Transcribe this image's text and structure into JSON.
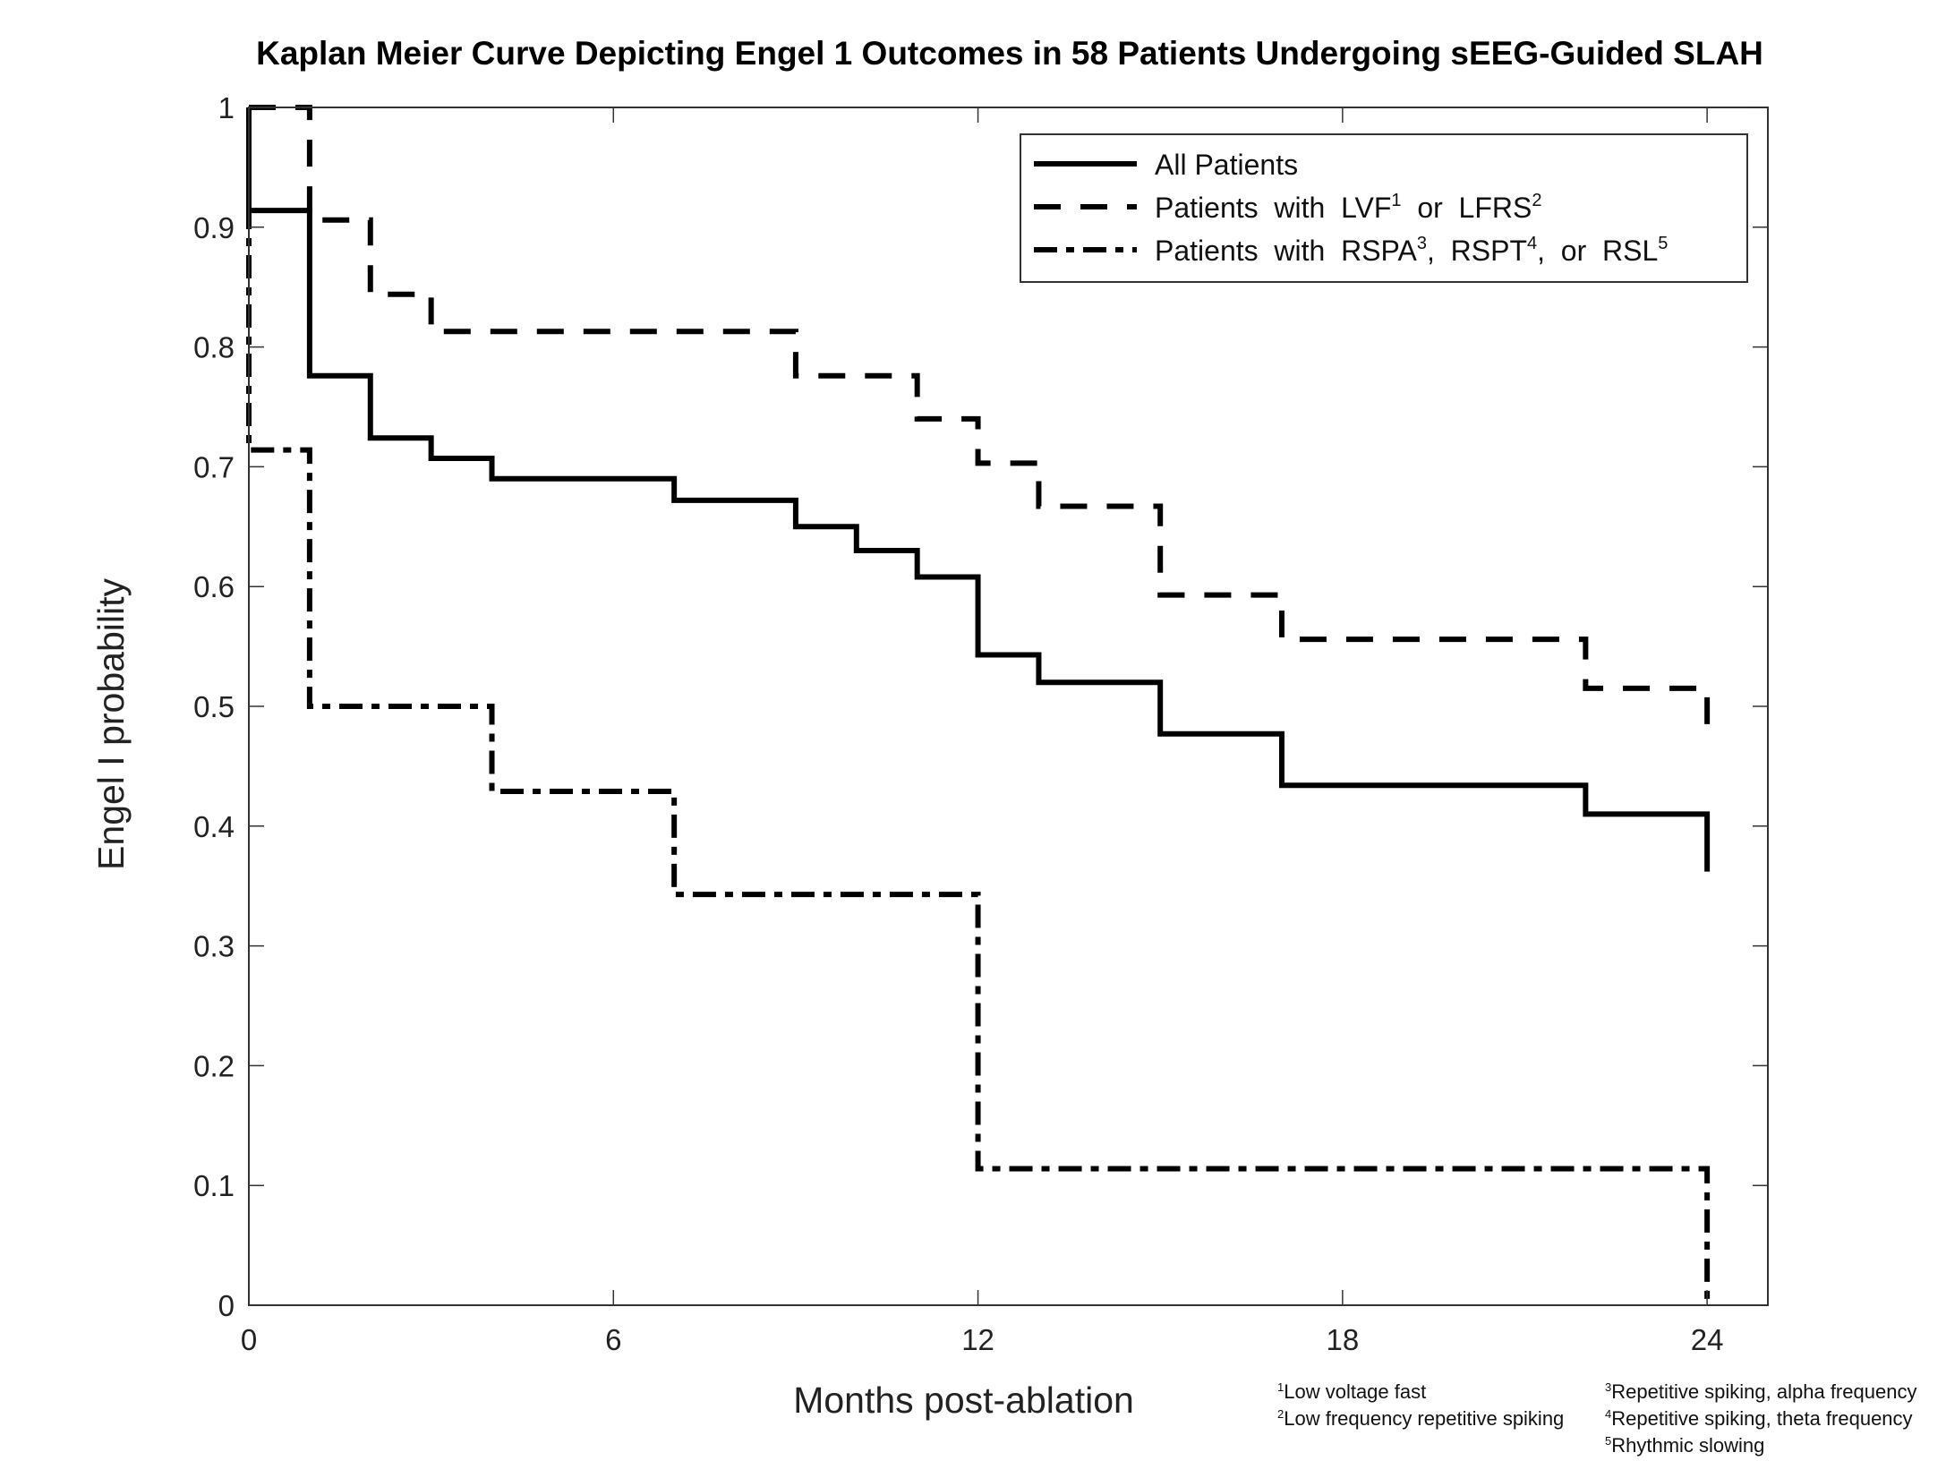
{
  "chart_data": {
    "type": "line",
    "subtype": "step",
    "title": "Kaplan Meier Curve Depicting Engel 1 Outcomes in 58 Patients Undergoing sEEG-Guided SLAH",
    "xlabel": "Months post-ablation",
    "ylabel": "Engel I probability",
    "xlim": [
      0,
      25
    ],
    "ylim": [
      0,
      1
    ],
    "xticks": [
      0,
      6,
      12,
      18,
      24
    ],
    "xtick_labels": [
      "0",
      "6",
      "12",
      "18",
      "24"
    ],
    "yticks": [
      0,
      0.1,
      0.2,
      0.3,
      0.4,
      0.5,
      0.6,
      0.7,
      0.8,
      0.9,
      1
    ],
    "ytick_labels": [
      "0",
      "0.1",
      "0.2",
      "0.3",
      "0.4",
      "0.5",
      "0.6",
      "0.7",
      "0.8",
      "0.9",
      "1"
    ],
    "grid": false,
    "legend_position": "top-right",
    "series": [
      {
        "name": "All Patients",
        "legend": {
          "text": "All Patients",
          "sups": []
        },
        "style": "solid",
        "x": [
          0,
          0,
          1,
          2,
          3,
          4,
          7,
          9,
          10,
          11,
          12,
          13,
          15,
          17,
          22,
          24
        ],
        "y": [
          1,
          0.914,
          0.776,
          0.724,
          0.707,
          0.69,
          0.672,
          0.65,
          0.63,
          0.608,
          0.543,
          0.52,
          0.477,
          0.434,
          0.41,
          0.362
        ]
      },
      {
        "name": "Patients with LVF1 or LFRS2",
        "legend": {
          "parts": [
            "Patients  with  LVF",
            "1",
            "  or  LFRS",
            "2"
          ]
        },
        "style": "dashed",
        "x": [
          0,
          1,
          2,
          3,
          9,
          11,
          12,
          13,
          15,
          17,
          22,
          24
        ],
        "y": [
          1,
          0.906,
          0.844,
          0.813,
          0.776,
          0.74,
          0.703,
          0.667,
          0.593,
          0.556,
          0.515,
          0.47
        ]
      },
      {
        "name": "Patients with RSPA3, RSPT4, or RSL5",
        "legend": {
          "parts": [
            "Patients  with  RSPA",
            "3",
            ",  RSPT",
            "4",
            ",  or  RSL",
            "5"
          ]
        },
        "style": "dashdot",
        "x": [
          0,
          0,
          1,
          4,
          7,
          12,
          24
        ],
        "y": [
          1,
          0.714,
          0.5,
          0.429,
          0.343,
          0.114,
          0
        ]
      }
    ],
    "footnotes_left": [
      {
        "num": "1",
        "text": "Low voltage fast"
      },
      {
        "num": "2",
        "text": "Low frequency repetitive spiking"
      }
    ],
    "footnotes_right": [
      {
        "num": "3",
        "text": "Repetitive spiking, alpha frequency"
      },
      {
        "num": "4",
        "text": "Repetitive spiking, theta frequency"
      },
      {
        "num": "5",
        "text": "Rhythmic slowing"
      }
    ]
  }
}
